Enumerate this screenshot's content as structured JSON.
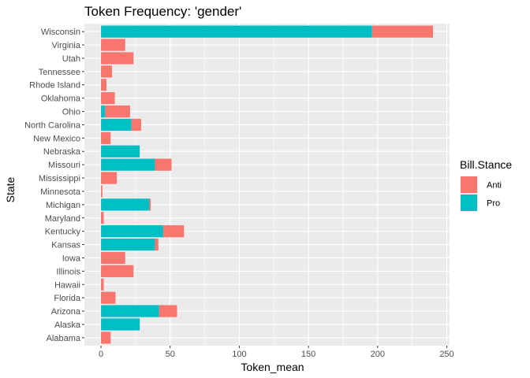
{
  "chart_data": {
    "type": "bar",
    "orientation": "horizontal",
    "stacked": true,
    "title": "Token Frequency: 'gender'",
    "xlabel": "Token_mean",
    "ylabel": "State",
    "xlim": [
      -12,
      252
    ],
    "x_ticks": [
      0,
      50,
      100,
      150,
      200,
      250
    ],
    "x_tick_labels": [
      "0",
      "50",
      "100",
      "150",
      "200",
      "250"
    ],
    "grid": true,
    "legend_placement": "right",
    "legend_title": "Bill.Stance",
    "categories": [
      "Alabama",
      "Alaska",
      "Arizona",
      "Florida",
      "Hawaii",
      "Illinois",
      "Iowa",
      "Kansas",
      "Kentucky",
      "Maryland",
      "Michigan",
      "Minnesota",
      "Mississippi",
      "Missouri",
      "Nebraska",
      "New Mexico",
      "North Carolina",
      "Ohio",
      "Oklahoma",
      "Rhode Island",
      "Tennessee",
      "Utah",
      "Virginia",
      "Wisconsin"
    ],
    "series": [
      {
        "name": "Pro",
        "color": "#00BFC4",
        "values": [
          0,
          28,
          42,
          0,
          0,
          0,
          0,
          39,
          45,
          0,
          35,
          0,
          0,
          39,
          28,
          0,
          22,
          3,
          0,
          0,
          0,
          0,
          0,
          196
        ]
      },
      {
        "name": "Anti",
        "color": "#F8766D",
        "values": [
          7,
          0,
          13,
          10.5,
          2,
          23.5,
          17.5,
          2.5,
          15,
          2,
          1,
          1,
          11.5,
          12,
          0,
          7,
          7,
          18,
          10,
          4,
          8,
          23.5,
          17.5,
          44
        ]
      }
    ]
  }
}
